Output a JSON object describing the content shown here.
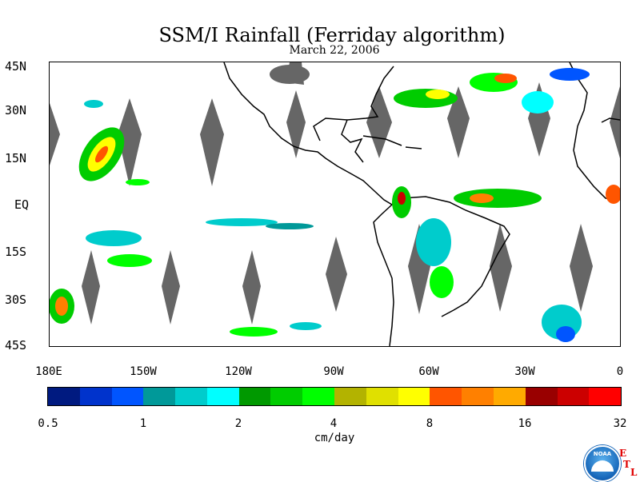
{
  "title": "SSM/I Rainfall (Ferriday algorithm)",
  "date": "March 22, 2006",
  "lat_labels": [
    "45N",
    "30N",
    "15N",
    "EQ",
    "15S",
    "30S",
    "45S"
  ],
  "lon_labels": [
    "180E",
    "150W",
    "120W",
    "90W",
    "60W",
    "30W",
    "0"
  ],
  "colorbar": {
    "colors": [
      "#001a80",
      "#0033cc",
      "#0055ff",
      "#009999",
      "#00cccc",
      "#00ffff",
      "#009900",
      "#00cc00",
      "#00ff00",
      "#b3b300",
      "#e0e000",
      "#ffff00",
      "#ff5500",
      "#ff8000",
      "#ffaa00",
      "#990000",
      "#cc0000",
      "#ff0000"
    ],
    "labels": [
      "0.5",
      "1",
      "2",
      "4",
      "8",
      "16",
      "32"
    ]
  },
  "units": "cm/day",
  "logo": {
    "text": "NOAA",
    "letters": [
      "E",
      "T",
      "L"
    ]
  },
  "colors": {
    "swath_gap": "#666666",
    "land": "#000000"
  }
}
